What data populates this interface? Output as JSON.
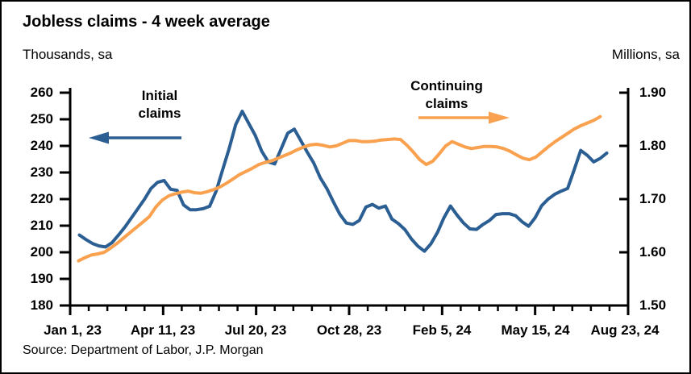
{
  "title": "Jobless claims - 4 week average",
  "source": "Source: Department of Labor, J.P. Morgan",
  "annotations": {
    "initial_line1": "Initial",
    "initial_line2": "claims",
    "continuing_line1": "Continuing",
    "continuing_line2": "claims"
  },
  "colors": {
    "initial_claims": "#2B5E92",
    "continuing_claims": "#F9A14E",
    "axis": "#000000",
    "background": "#FFFFFF"
  },
  "chart_data": {
    "type": "line",
    "title": "Jobless claims - 4 week average",
    "legend_position": "in-plot arrow annotations",
    "grid": "off",
    "y_left": {
      "label": "Thousands, sa",
      "min": 180,
      "max": 260,
      "tick_labels": [
        "260",
        "250",
        "240",
        "230",
        "220",
        "210",
        "200",
        "190",
        "180"
      ]
    },
    "y_right": {
      "label": "Millions, sa",
      "min": 1.5,
      "max": 1.9,
      "tick_labels": [
        "1.90",
        "1.80",
        "1.70",
        "1.60",
        "1.50"
      ]
    },
    "x_axis": {
      "labels": [
        "Jan 1, 23",
        "Apr 11, 23",
        "Jul 20, 23",
        "Oct 28, 23",
        "Feb 5, 24",
        "May 15, 24",
        "Aug 23, 24"
      ],
      "span_days": 600,
      "minor_ticks_between_majors": 4
    },
    "series": [
      {
        "name": "Initial claims",
        "axis": "left",
        "unit": "thousands, sa",
        "color": "#2B5E92",
        "start_day": 10,
        "end_day": 577,
        "step": "weekly",
        "values": [
          206.5,
          204.8,
          203.3,
          202.4,
          202.0,
          203.6,
          206.5,
          209.5,
          213.0,
          216.5,
          220.0,
          224.0,
          226.3,
          227.0,
          223.7,
          223.3,
          217.8,
          216.0,
          216.0,
          216.4,
          217.3,
          223.0,
          231.0,
          239.0,
          248.0,
          253.0,
          248.5,
          244.0,
          238.0,
          234.0,
          233.2,
          239.0,
          244.8,
          246.3,
          242.0,
          237.6,
          233.5,
          228.0,
          224.0,
          219.0,
          214.3,
          211.0,
          210.5,
          212.0,
          217.0,
          218.0,
          216.6,
          217.4,
          212.5,
          210.8,
          208.5,
          205.0,
          202.3,
          200.4,
          203.2,
          207.5,
          213.0,
          217.4,
          214.0,
          211.0,
          208.8,
          208.6,
          210.5,
          212.0,
          214.2,
          214.5,
          214.5,
          213.8,
          211.5,
          209.8,
          213.0,
          217.5,
          220.0,
          221.8,
          223.0,
          224.0,
          231.0,
          238.3,
          236.5,
          234.0,
          235.3,
          237.3
        ]
      },
      {
        "name": "Continuing claims",
        "axis": "right",
        "unit": "millions, sa",
        "color": "#F9A14E",
        "start_day": 9,
        "end_day": 570,
        "step": "weekly",
        "values": [
          1.584,
          1.59,
          1.595,
          1.597,
          1.6,
          1.608,
          1.617,
          1.627,
          1.637,
          1.647,
          1.657,
          1.667,
          1.685,
          1.698,
          1.706,
          1.71,
          1.713,
          1.715,
          1.712,
          1.711,
          1.714,
          1.718,
          1.723,
          1.73,
          1.738,
          1.746,
          1.752,
          1.758,
          1.765,
          1.769,
          1.772,
          1.777,
          1.782,
          1.787,
          1.793,
          1.798,
          1.802,
          1.803,
          1.801,
          1.798,
          1.8,
          1.805,
          1.81,
          1.81,
          1.808,
          1.808,
          1.809,
          1.811,
          1.812,
          1.813,
          1.812,
          1.801,
          1.788,
          1.774,
          1.765,
          1.771,
          1.785,
          1.8,
          1.808,
          1.803,
          1.798,
          1.795,
          1.797,
          1.799,
          1.799,
          1.798,
          1.795,
          1.79,
          1.783,
          1.777,
          1.774,
          1.779,
          1.789,
          1.799,
          1.808,
          1.816,
          1.824,
          1.832,
          1.838,
          1.843,
          1.848,
          1.855
        ]
      }
    ]
  }
}
